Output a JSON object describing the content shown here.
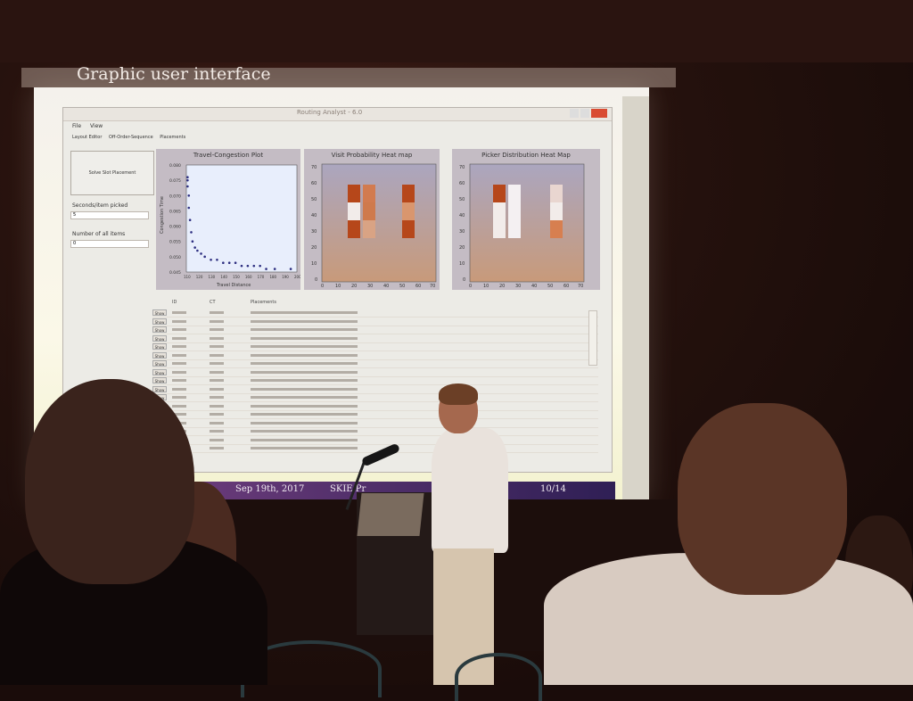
{
  "slide": {
    "title": "Graphic user interface",
    "footer_date": "Sep 19th, 2017",
    "footer_venue": "SKIE Pr",
    "footer_page": "10/14"
  },
  "app": {
    "window_title": "Routing Analyst - 6.0",
    "menu": [
      "File",
      "View"
    ],
    "tabs": [
      "Layout Editor",
      "Off-Order-Sequence",
      "Placements"
    ],
    "run_button": "Solve Slot Placement",
    "field1_label": "Seconds/item picked",
    "field1_value": "5",
    "field2_label": "Number of all items",
    "field2_value": "0"
  },
  "panels": {
    "p1": {
      "title": "Travel-Congestion Plot",
      "ylabel": "Congestion Time",
      "xlabel": "Travel Distance"
    },
    "p2": {
      "title": "Visit Probability Heat map"
    },
    "p3": {
      "title": "Picker Distribution Heat Map"
    }
  },
  "table": {
    "headers": [
      "ID",
      "CT",
      "Placements"
    ],
    "row_button": "Show"
  },
  "colors": {
    "heat_dark": "#b6471a",
    "heat_mid": "#d9966e",
    "heat_light": "#f2ecea",
    "panel_bg": "#c4bcc4",
    "scatter": "#2d2e80"
  },
  "chart_data": [
    {
      "type": "scatter",
      "title": "Travel-Congestion Plot",
      "ylabel": "Congestion Time",
      "xlabel": "Travel Distance",
      "y_ticks": [
        "0.080",
        "0.075",
        "0.070",
        "0.065",
        "0.060",
        "0.055",
        "0.050",
        "0.045"
      ],
      "ylim": [
        0.045,
        0.08
      ],
      "x_ticks": [
        "110",
        "120",
        "130",
        "140",
        "150",
        "160",
        "170",
        "180",
        "190",
        "200"
      ],
      "xlim": [
        110,
        200
      ],
      "points": [
        [
          111,
          0.076
        ],
        [
          111,
          0.075
        ],
        [
          111,
          0.073
        ],
        [
          112,
          0.07
        ],
        [
          112,
          0.066
        ],
        [
          113,
          0.062
        ],
        [
          114,
          0.058
        ],
        [
          115,
          0.055
        ],
        [
          117,
          0.053
        ],
        [
          119,
          0.052
        ],
        [
          122,
          0.051
        ],
        [
          125,
          0.05
        ],
        [
          130,
          0.049
        ],
        [
          135,
          0.049
        ],
        [
          140,
          0.048
        ],
        [
          145,
          0.048
        ],
        [
          150,
          0.048
        ],
        [
          155,
          0.047
        ],
        [
          160,
          0.047
        ],
        [
          165,
          0.047
        ],
        [
          170,
          0.047
        ],
        [
          175,
          0.046
        ],
        [
          182,
          0.046
        ],
        [
          195,
          0.046
        ]
      ]
    },
    {
      "type": "heatmap",
      "title": "Visit Probability Heat map",
      "y_ticks": [
        "70",
        "60",
        "50",
        "40",
        "30",
        "20",
        "10",
        "0"
      ],
      "x_ticks": [
        "0",
        "10",
        "20",
        "30",
        "40",
        "50",
        "60",
        "70"
      ]
    },
    {
      "type": "heatmap",
      "title": "Picker Distribution Heat Map",
      "y_ticks": [
        "70",
        "60",
        "50",
        "40",
        "30",
        "20",
        "10",
        "0"
      ],
      "x_ticks": [
        "0",
        "10",
        "20",
        "30",
        "40",
        "50",
        "60",
        "70"
      ]
    }
  ]
}
